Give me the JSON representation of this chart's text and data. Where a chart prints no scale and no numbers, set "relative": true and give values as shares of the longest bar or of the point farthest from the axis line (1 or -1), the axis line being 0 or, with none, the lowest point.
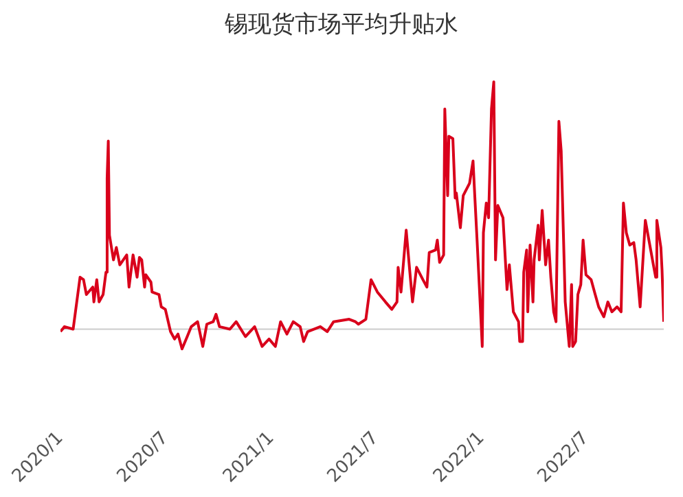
{
  "chart_data": {
    "type": "line",
    "title": "锡现货市场平均升贴水",
    "relative": true,
    "color": "#d9001b",
    "line_style": "solid",
    "marker": "none",
    "xlim": [
      "2020-01-01",
      "2022-11-13"
    ],
    "xticks": [
      {
        "value": "2020-01-01",
        "label": "2020/1"
      },
      {
        "value": "2020-07-01",
        "label": "2020/7"
      },
      {
        "value": "2021-01-01",
        "label": "2021/1"
      },
      {
        "value": "2021-07-01",
        "label": "2021/7"
      },
      {
        "value": "2022-01-01",
        "label": "2022/1"
      },
      {
        "value": "2022-07-01",
        "label": "2022/7"
      }
    ],
    "x": [
      "2020-01-01",
      "2020-01-08",
      "2020-01-23",
      "2020-02-04",
      "2020-02-10",
      "2020-02-15",
      "2020-02-26",
      "2020-02-28",
      "2020-03-04",
      "2020-03-08",
      "2020-03-15",
      "2020-03-20",
      "2020-03-22",
      "2020-03-24",
      "2020-03-26",
      "2020-04-02",
      "2020-04-07",
      "2020-04-13",
      "2020-04-25",
      "2020-04-29",
      "2020-05-06",
      "2020-05-13",
      "2020-05-17",
      "2020-05-21",
      "2020-05-26",
      "2020-05-28",
      "2020-06-06",
      "2020-06-08",
      "2020-06-20",
      "2020-06-24",
      "2020-07-01",
      "2020-07-10",
      "2020-07-17",
      "2020-07-23",
      "2020-07-30",
      "2020-08-08",
      "2020-08-15",
      "2020-08-26",
      "2020-09-04",
      "2020-09-11",
      "2020-09-22",
      "2020-09-27",
      "2020-10-03",
      "2020-10-21",
      "2020-11-01",
      "2020-11-17",
      "2020-12-03",
      "2020-12-16",
      "2020-12-28",
      "2021-01-08",
      "2021-01-17",
      "2021-01-28",
      "2021-02-08",
      "2021-02-20",
      "2021-02-26",
      "2021-03-05",
      "2021-03-27",
      "2021-04-08",
      "2021-04-19",
      "2021-05-16",
      "2021-05-27",
      "2021-06-01",
      "2021-06-14",
      "2021-06-23",
      "2021-07-04",
      "2021-07-18",
      "2021-07-29",
      "2021-08-07",
      "2021-08-09",
      "2021-08-14",
      "2021-08-23",
      "2021-08-29",
      "2021-09-03",
      "2021-09-10",
      "2021-09-21",
      "2021-09-28",
      "2021-10-02",
      "2021-10-13",
      "2021-10-16",
      "2021-10-20",
      "2021-10-27",
      "2021-10-29",
      "2021-11-03",
      "2021-11-05",
      "2021-11-12",
      "2021-11-16",
      "2021-11-18",
      "2021-11-25",
      "2021-11-30",
      "2021-12-11",
      "2021-12-17",
      "2021-12-20",
      "2021-12-24",
      "2022-01-02",
      "2022-01-04",
      "2022-01-09",
      "2022-01-13",
      "2022-01-18",
      "2022-01-22",
      "2022-01-25",
      "2022-01-29",
      "2022-02-07",
      "2022-02-14",
      "2022-02-18",
      "2022-02-25",
      "2022-03-06",
      "2022-03-08",
      "2022-03-13",
      "2022-03-15",
      "2022-03-20",
      "2022-03-22",
      "2022-03-26",
      "2022-03-31",
      "2022-04-02",
      "2022-04-09",
      "2022-04-11",
      "2022-04-16",
      "2022-04-22",
      "2022-04-27",
      "2022-05-01",
      "2022-05-06",
      "2022-05-10",
      "2022-05-15",
      "2022-05-19",
      "2022-05-26",
      "2022-06-02",
      "2022-06-06",
      "2022-06-08",
      "2022-06-13",
      "2022-06-17",
      "2022-06-22",
      "2022-06-26",
      "2022-07-01",
      "2022-07-10",
      "2022-07-17",
      "2022-07-23",
      "2022-08-01",
      "2022-08-08",
      "2022-08-15",
      "2022-08-24",
      "2022-08-31",
      "2022-09-04",
      "2022-09-09",
      "2022-09-15",
      "2022-09-22",
      "2022-09-26",
      "2022-10-03",
      "2022-10-12",
      "2022-10-19",
      "2022-10-26",
      "2022-10-30",
      "2022-11-01",
      "2022-11-08",
      "2022-11-10",
      "2022-11-13"
    ],
    "values": [
      -0.01,
      0.01,
      0,
      0.21,
      0.2,
      0.14,
      0.17,
      0.11,
      0.2,
      0.11,
      0.14,
      0.23,
      0.61,
      0.76,
      0.38,
      0.28,
      0.33,
      0.26,
      0.3,
      0.17,
      0.3,
      0.21,
      0.29,
      0.28,
      0.17,
      0.22,
      0.19,
      0.15,
      0.14,
      0.09,
      0.08,
      -0.01,
      -0.04,
      -0.02,
      -0.08,
      -0.03,
      0.01,
      0.03,
      -0.07,
      0.02,
      0.03,
      0.06,
      0.01,
      0,
      0.03,
      -0.03,
      0.01,
      -0.07,
      -0.04,
      -0.07,
      0.03,
      -0.02,
      0.03,
      0.01,
      -0.05,
      -0.01,
      0.01,
      -0.01,
      0.03,
      0.04,
      0.03,
      0.02,
      0.04,
      0.2,
      0.15,
      0.11,
      0.08,
      0.11,
      0.25,
      0.15,
      0.4,
      0.24,
      0.11,
      0.25,
      0.2,
      0.17,
      0.31,
      0.32,
      0.36,
      0.27,
      0.3,
      0.89,
      0.54,
      0.78,
      0.77,
      0.53,
      0.55,
      0.41,
      0.54,
      0.59,
      0.68,
      0.54,
      0.36,
      -0.07,
      0.39,
      0.51,
      0.45,
      0.89,
      1,
      0.28,
      0.5,
      0.45,
      0.16,
      0.26,
      0.07,
      0.03,
      -0.05,
      -0.05,
      0.23,
      0.32,
      0.07,
      0.34,
      0.11,
      0.28,
      0.42,
      0.28,
      0.48,
      0.26,
      0.36,
      0.21,
      0.07,
      0.03,
      0.84,
      0.72,
      0.11,
      -0.07,
      0.18,
      -0.07,
      -0.05,
      0.14,
      0.18,
      0.36,
      0.22,
      0.2,
      0.14,
      0.09,
      0.05,
      0.11,
      0.07,
      0.09,
      0.07,
      0.51,
      0.39,
      0.34,
      0.35,
      0.28,
      0.09,
      0.44,
      0.35,
      0.26,
      0.21,
      0.44,
      0.33,
      0.24,
      0.03
    ]
  }
}
